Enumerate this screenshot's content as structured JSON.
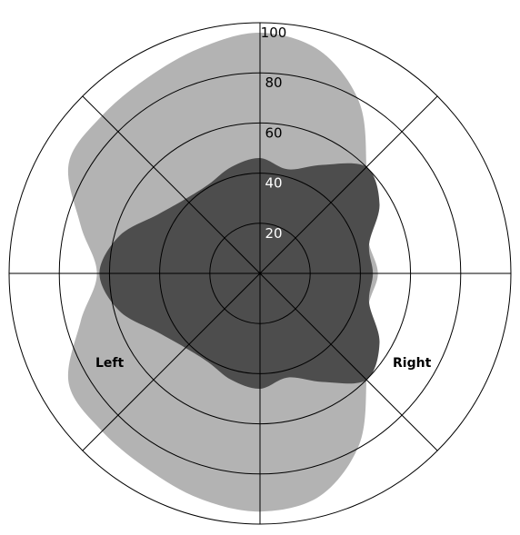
{
  "chart_data": {
    "type": "polar-area",
    "r_ticks": [
      20,
      40,
      60,
      80,
      100
    ],
    "r_max": 100,
    "colors": {
      "field_outer": "#b3b3b3",
      "field_inner": "#4d4d4d",
      "grid": "#000000",
      "background": "#ffffff"
    },
    "series": [
      {
        "name": "",
        "color": "#b3b3b3",
        "shape": "two-lobe-outer-field",
        "points": [
          {
            "angle": 0,
            "r": 47
          },
          {
            "angle": 15,
            "r": 45
          },
          {
            "angle": 30,
            "r": 48
          },
          {
            "angle": 45,
            "r": 60
          },
          {
            "angle": 60,
            "r": 79
          },
          {
            "angle": 75,
            "r": 92
          },
          {
            "angle": 90,
            "r": 96
          },
          {
            "angle": 105,
            "r": 93
          },
          {
            "angle": 120,
            "r": 90
          },
          {
            "angle": 135,
            "r": 89
          },
          {
            "angle": 150,
            "r": 88
          },
          {
            "angle": 165,
            "r": 74
          },
          {
            "angle": 180,
            "r": 65
          },
          {
            "angle": 195,
            "r": 74
          },
          {
            "angle": 210,
            "r": 88
          },
          {
            "angle": 225,
            "r": 89
          },
          {
            "angle": 240,
            "r": 90
          },
          {
            "angle": 255,
            "r": 93
          },
          {
            "angle": 270,
            "r": 95
          },
          {
            "angle": 285,
            "r": 92
          },
          {
            "angle": 300,
            "r": 79
          },
          {
            "angle": 315,
            "r": 60
          },
          {
            "angle": 330,
            "r": 48
          },
          {
            "angle": 345,
            "r": 45
          }
        ]
      },
      {
        "name": "",
        "color": "#4d4d4d",
        "shape": "central-field",
        "points": [
          {
            "angle": 0,
            "r": 45
          },
          {
            "angle": 15,
            "r": 45
          },
          {
            "angle": 30,
            "r": 55
          },
          {
            "angle": 45,
            "r": 60
          },
          {
            "angle": 60,
            "r": 50
          },
          {
            "angle": 75,
            "r": 43
          },
          {
            "angle": 90,
            "r": 46
          },
          {
            "angle": 105,
            "r": 44
          },
          {
            "angle": 120,
            "r": 41
          },
          {
            "angle": 135,
            "r": 42
          },
          {
            "angle": 150,
            "r": 47
          },
          {
            "angle": 165,
            "r": 58
          },
          {
            "angle": 180,
            "r": 64
          },
          {
            "angle": 195,
            "r": 58
          },
          {
            "angle": 210,
            "r": 47
          },
          {
            "angle": 225,
            "r": 42
          },
          {
            "angle": 240,
            "r": 41
          },
          {
            "angle": 255,
            "r": 44
          },
          {
            "angle": 270,
            "r": 46
          },
          {
            "angle": 285,
            "r": 43
          },
          {
            "angle": 300,
            "r": 50
          },
          {
            "angle": 315,
            "r": 60
          },
          {
            "angle": 330,
            "r": 55
          },
          {
            "angle": 345,
            "r": 45
          }
        ]
      }
    ],
    "annotations": {
      "left": "Left",
      "right": "Right"
    }
  }
}
